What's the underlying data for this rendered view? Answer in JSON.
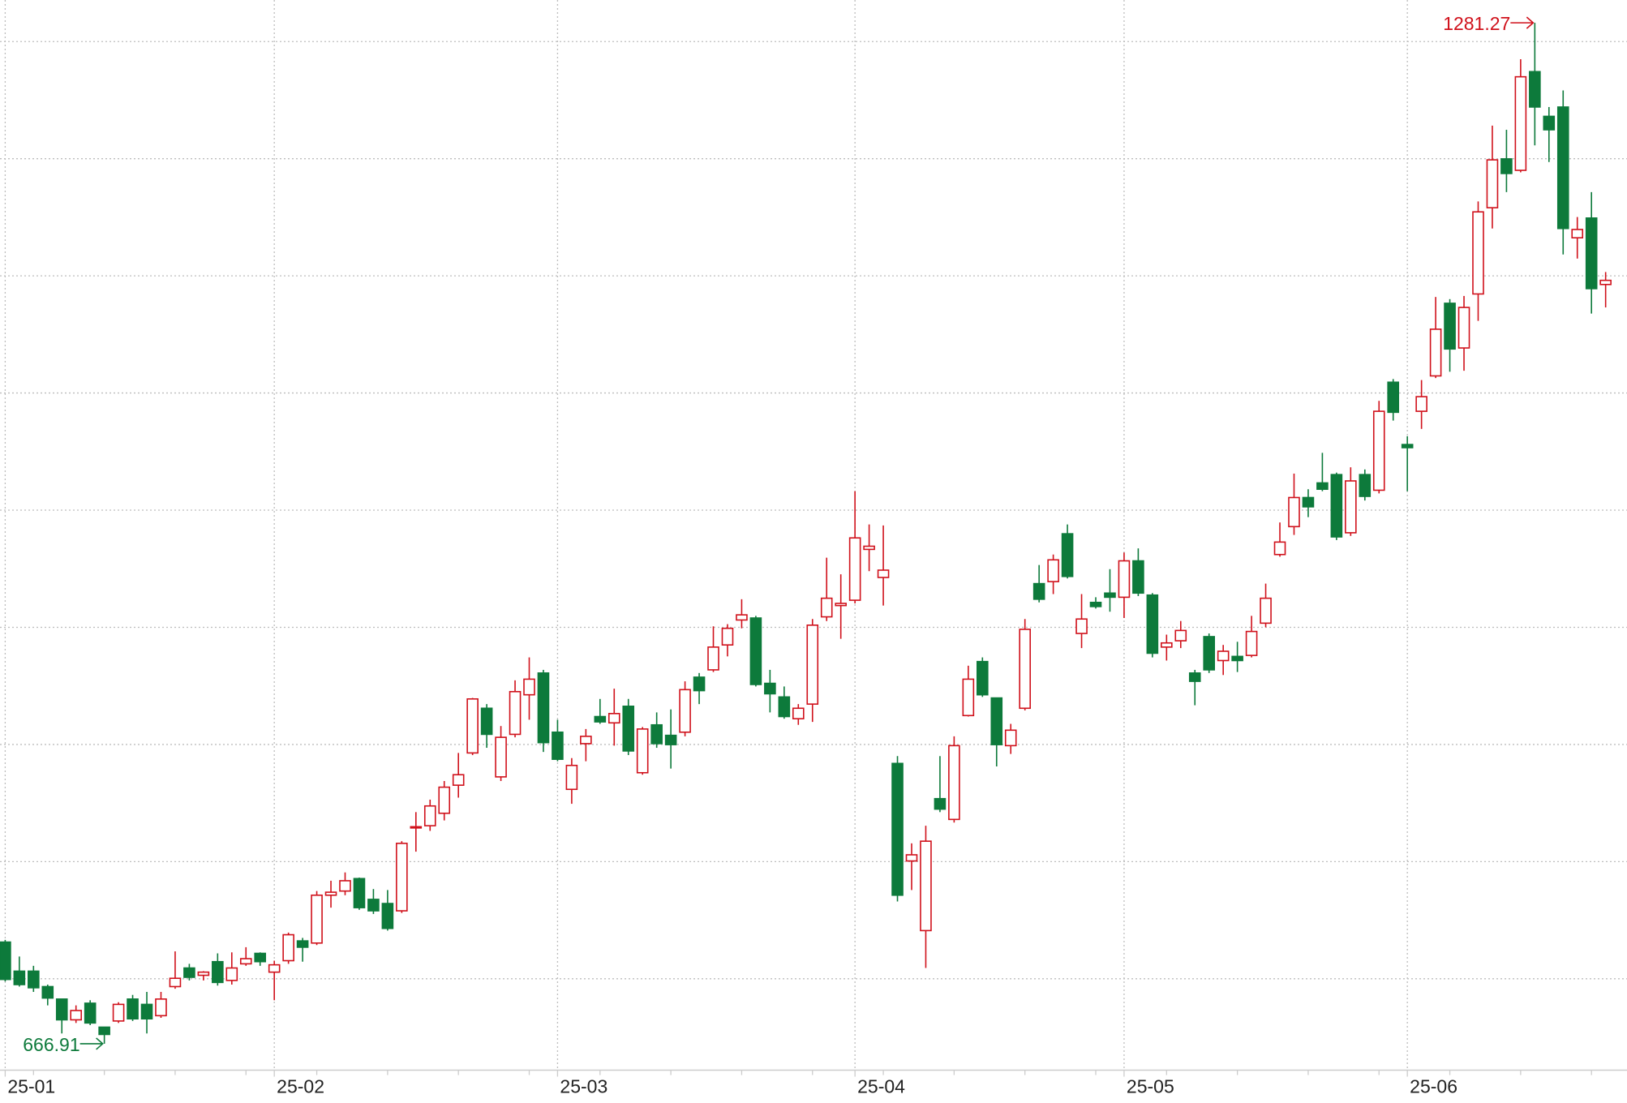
{
  "chart_data": {
    "type": "candlestick",
    "categories": [
      "25-01",
      null,
      null,
      null,
      null,
      null,
      null,
      null,
      null,
      null,
      null,
      null,
      null,
      null,
      null,
      null,
      null,
      null,
      null,
      "25-02",
      null,
      null,
      null,
      null,
      null,
      null,
      null,
      null,
      null,
      null,
      null,
      null,
      null,
      null,
      null,
      null,
      null,
      null,
      null,
      "25-03",
      null,
      null,
      null,
      null,
      null,
      null,
      null,
      null,
      null,
      null,
      null,
      null,
      null,
      null,
      null,
      null,
      null,
      null,
      null,
      null,
      "25-04",
      null,
      null,
      null,
      null,
      null,
      null,
      null,
      null,
      null,
      null,
      null,
      null,
      null,
      null,
      null,
      null,
      null,
      null,
      "25-05",
      null,
      null,
      null,
      null,
      null,
      null,
      null,
      null,
      null,
      null,
      null,
      null,
      null,
      null,
      null,
      null,
      null,
      null,
      null,
      "25-06",
      null,
      null,
      null,
      null,
      null,
      null,
      null,
      null,
      null,
      null,
      null,
      null,
      null,
      null
    ],
    "open": [
      728.1,
      710.6,
      710.6,
      701.3,
      693.8,
      681.3,
      691.3,
      676.9,
      680.6,
      693.8,
      690.6,
      683.8,
      701.3,
      712.5,
      708.1,
      716.3,
      705.0,
      715.0,
      721.3,
      710.0,
      716.9,
      728.8,
      727.5,
      756.3,
      758.8,
      766.3,
      753.8,
      751.3,
      746.9,
      796.9,
      798.1,
      805.6,
      822.5,
      841.9,
      868.8,
      827.5,
      853.1,
      876.9,
      890.0,
      854.4,
      820.0,
      847.5,
      863.8,
      860.0,
      870.0,
      830.0,
      858.8,
      852.5,
      854.4,
      887.5,
      891.9,
      906.9,
      921.9,
      923.1,
      883.8,
      875.6,
      862.5,
      871.3,
      923.8,
      930.6,
      933.8,
      964.4,
      947.5,
      835.6,
      776.9,
      735.0,
      814.4,
      801.9,
      864.4,
      896.9,
      875.0,
      846.3,
      868.8,
      943.8,
      945.0,
      973.8,
      913.8,
      932.5,
      938.1,
      935.6,
      957.5,
      936.9,
      905.6,
      909.4,
      890.0,
      911.9,
      897.5,
      900.0,
      900.6,
      920.0,
      961.3,
      978.1,
      995.6,
      1004.4,
      1009.4,
      974.4,
      1009.4,
      1000.0,
      1065.0,
      1027.5,
      1047.5,
      1068.8,
      1112.5,
      1085.6,
      1118.1,
      1170.0,
      1199.4,
      1192.5,
      1251.9,
      1225.0,
      1230.6,
      1151.9,
      1163.8,
      1123.8
    ],
    "high": [
      729.4,
      719.4,
      713.8,
      702.5,
      693.8,
      690.0,
      693.1,
      676.9,
      691.9,
      696.3,
      698.1,
      698.1,
      722.5,
      715.0,
      710.6,
      721.3,
      721.9,
      725.0,
      721.9,
      716.9,
      733.8,
      730.6,
      758.8,
      765.0,
      770.0,
      766.9,
      760.0,
      759.4,
      788.8,
      806.3,
      813.8,
      825.0,
      841.9,
      875.0,
      871.3,
      858.1,
      885.6,
      899.4,
      891.9,
      861.9,
      838.8,
      856.3,
      874.4,
      880.6,
      874.4,
      857.5,
      866.3,
      868.1,
      885.0,
      890.0,
      918.1,
      919.4,
      934.4,
      924.4,
      891.9,
      881.9,
      871.3,
      922.5,
      959.4,
      949.4,
      999.4,
      979.4,
      978.8,
      840.0,
      787.5,
      798.1,
      840.0,
      851.9,
      894.4,
      899.4,
      875.0,
      859.4,
      922.5,
      955.0,
      961.3,
      979.4,
      937.5,
      935.6,
      952.5,
      962.5,
      965.0,
      938.1,
      913.1,
      921.3,
      891.9,
      913.8,
      906.9,
      908.8,
      924.4,
      943.8,
      980.6,
      1010.0,
      1000.6,
      1022.5,
      1010.6,
      1013.8,
      1012.5,
      1053.8,
      1066.9,
      1032.5,
      1066.3,
      1116.3,
      1115.0,
      1116.9,
      1173.8,
      1219.4,
      1216.9,
      1259.4,
      1281.27,
      1230.6,
      1240.6,
      1164.4,
      1179.4,
      1131.3
    ],
    "low": [
      704.4,
      701.3,
      698.1,
      690.0,
      673.1,
      679.4,
      678.1,
      666.91,
      679.4,
      680.6,
      673.1,
      682.5,
      700.0,
      705.0,
      705.0,
      701.9,
      702.5,
      713.8,
      713.8,
      693.1,
      715.0,
      716.3,
      726.3,
      748.8,
      756.3,
      747.5,
      745.0,
      735.0,
      745.6,
      782.5,
      795.0,
      801.3,
      815.0,
      840.6,
      845.0,
      825.0,
      851.3,
      861.9,
      842.5,
      836.9,
      811.3,
      836.9,
      859.4,
      846.3,
      840.6,
      828.8,
      845.0,
      832.5,
      851.9,
      871.3,
      890.6,
      900.0,
      916.9,
      881.9,
      866.3,
      862.5,
      858.8,
      860.6,
      921.3,
      910.6,
      931.9,
      951.3,
      930.6,
      752.5,
      759.4,
      712.5,
      806.3,
      800.0,
      863.8,
      875.6,
      833.8,
      841.3,
      867.5,
      932.5,
      937.5,
      946.9,
      905.0,
      928.8,
      926.9,
      923.1,
      936.3,
      899.4,
      897.5,
      905.0,
      870.6,
      890.0,
      888.8,
      890.6,
      899.4,
      917.5,
      960.0,
      973.1,
      983.8,
      999.4,
      970.0,
      972.5,
      993.8,
      998.1,
      1041.9,
      999.4,
      1036.9,
      1067.5,
      1071.3,
      1071.9,
      1101.9,
      1157.5,
      1179.4,
      1191.3,
      1207.5,
      1197.5,
      1141.9,
      1139.4,
      1106.3,
      1110.0
    ],
    "close": [
      705.6,
      702.5,
      700.6,
      694.4,
      681.3,
      686.9,
      679.4,
      672.5,
      690.6,
      681.9,
      681.9,
      693.8,
      706.3,
      706.9,
      710.0,
      703.8,
      712.5,
      718.1,
      716.3,
      714.4,
      732.5,
      725.0,
      756.3,
      758.1,
      765.0,
      748.8,
      746.9,
      736.3,
      787.5,
      797.5,
      810.0,
      821.3,
      828.8,
      874.4,
      853.1,
      851.3,
      878.8,
      886.3,
      848.1,
      838.1,
      834.4,
      851.9,
      860.6,
      865.6,
      843.1,
      856.3,
      847.5,
      846.9,
      880.0,
      879.4,
      905.6,
      916.9,
      925.0,
      883.1,
      877.5,
      863.8,
      868.8,
      918.8,
      935.0,
      931.9,
      971.3,
      966.3,
      951.9,
      756.3,
      780.6,
      788.8,
      808.1,
      846.3,
      886.3,
      876.9,
      846.9,
      855.6,
      916.3,
      934.4,
      958.1,
      948.1,
      922.5,
      930.0,
      935.6,
      957.5,
      938.1,
      901.9,
      908.1,
      915.6,
      885.0,
      891.9,
      903.1,
      897.5,
      915.0,
      935.0,
      968.8,
      995.6,
      990.0,
      1000.6,
      971.9,
      1005.6,
      996.3,
      1047.5,
      1046.9,
      1025.6,
      1056.3,
      1096.9,
      1085.0,
      1110.0,
      1167.5,
      1198.8,
      1190.6,
      1248.8,
      1230.6,
      1216.9,
      1157.5,
      1156.9,
      1121.3,
      1126.3
    ],
    "up_color": "#d0111b",
    "down_color": "#0d7a3b",
    "ylim": [
      651,
      1295
    ],
    "yticks": [
      706,
      776.5,
      847,
      917.5,
      988,
      1058.5,
      1129,
      1199.5,
      1270
    ],
    "grid": true,
    "max_index": 108,
    "min_index": 7
  }
}
